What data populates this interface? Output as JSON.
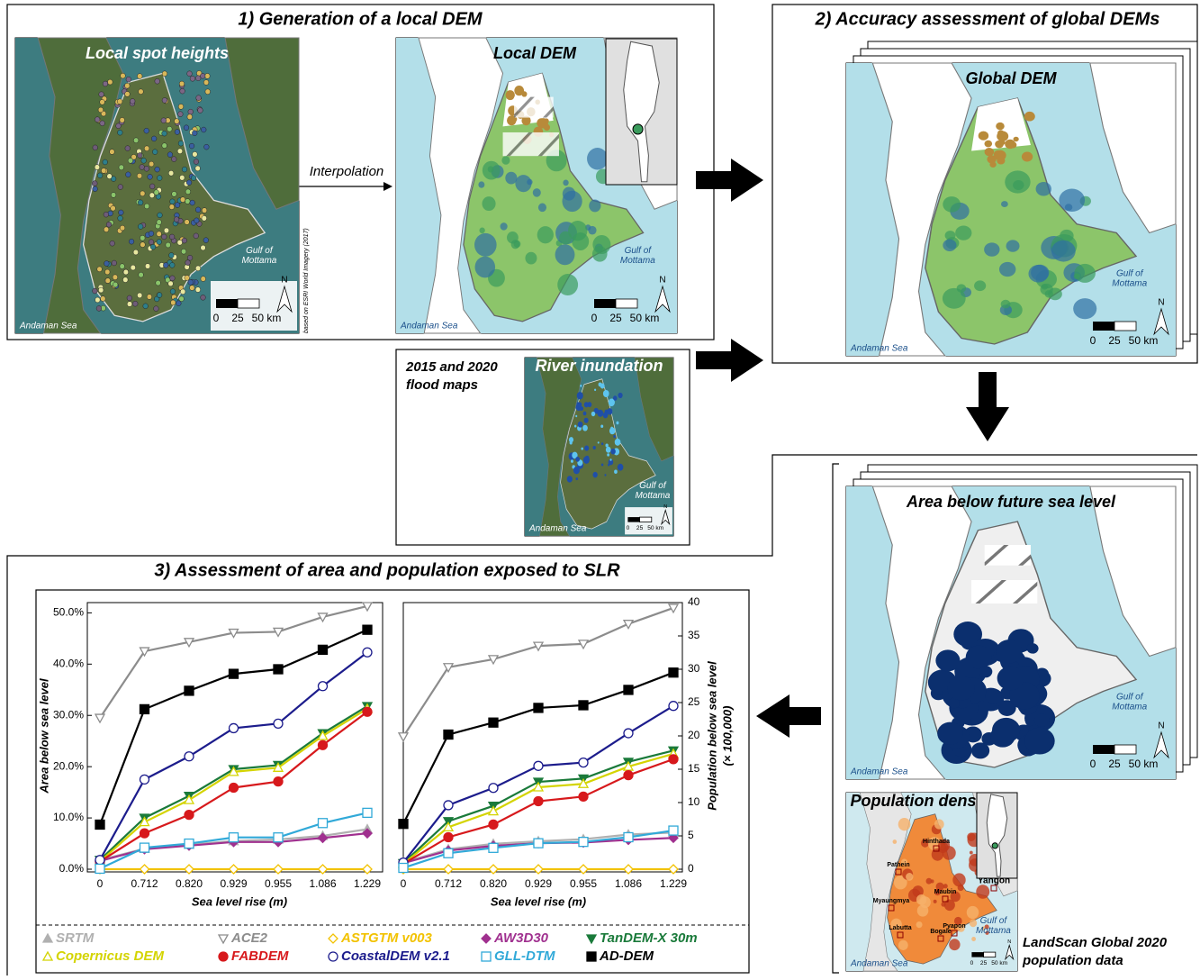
{
  "panel1": {
    "title": "1) Generation of a local DEM",
    "spot_map_label": "Local spot heights",
    "dem_map_label": "Local DEM",
    "arrow_label": "Interpolation",
    "credit": "based on ESRI World Imagery (2017)"
  },
  "map_labels": {
    "gulf": [
      "Gulf of",
      "Mottama"
    ],
    "sea": "Andaman Sea",
    "north": "N",
    "scale": [
      "0",
      "25",
      "50 km"
    ]
  },
  "panel2": {
    "title": "2) Accuracy assessment of global DEMs",
    "map_label": "Global DEM"
  },
  "flood": {
    "title": [
      "2015 and 2020",
      "flood maps"
    ],
    "map_label": "River inundation"
  },
  "panel3": {
    "title": "3) Assessment of area and population exposed to SLR",
    "map_label": "Area below future sea level",
    "pop_map_label": "Population density",
    "pop_caption": [
      "LandScan Global 2020",
      "population data"
    ],
    "cities": [
      "Hinthada",
      "Pathein",
      "Yangon",
      "Myaungmya",
      "Maubin",
      "Labutta",
      "Bogale",
      "Pyapon"
    ]
  },
  "chart_data": [
    {
      "type": "line",
      "xlabel": "Sea level rise (m)",
      "ylabel": "Area below sea level",
      "categories": [
        "0",
        "0.712",
        "0.820",
        "0.929",
        "0.955",
        "1.086",
        "1.229"
      ],
      "ylim": [
        0,
        52
      ],
      "yticks": [
        {
          "value": 0,
          "label": "0.0%"
        },
        {
          "value": 10,
          "label": "10.0%"
        },
        {
          "value": 20,
          "label": "20.0%"
        },
        {
          "value": 30,
          "label": "30.0%"
        },
        {
          "value": 40,
          "label": "40.0%"
        },
        {
          "value": 50,
          "label": "50.0%"
        }
      ],
      "axis_side": "left",
      "series": [
        {
          "name": "SRTM",
          "color": "#b0b0b0",
          "marker": "triangle-up",
          "filled": true,
          "values": [
            1.8,
            4.0,
            4.8,
            5.5,
            5.8,
            6.5,
            7.8
          ]
        },
        {
          "name": "ACE2",
          "color": "#8c8c8c",
          "marker": "triangle-down",
          "filled": false,
          "values": [
            29.5,
            42.5,
            44.3,
            46.1,
            46.3,
            49.2,
            51.3
          ]
        },
        {
          "name": "ASTGTM v003",
          "color": "#f2c200",
          "marker": "diamond",
          "filled": false,
          "values": [
            0,
            0,
            0,
            0,
            0,
            0,
            0
          ]
        },
        {
          "name": "AW3D30",
          "color": "#a0308f",
          "marker": "diamond",
          "filled": true,
          "values": [
            1.6,
            3.9,
            4.6,
            5.3,
            5.3,
            6.1,
            7.0
          ]
        },
        {
          "name": "TanDEM-X 30m",
          "color": "#1a7a3a",
          "marker": "triangle-down",
          "filled": true,
          "values": [
            1.8,
            10.0,
            14.3,
            19.5,
            20.3,
            26.5,
            31.8
          ]
        },
        {
          "name": "Copernicus DEM",
          "color": "#d4d400",
          "marker": "triangle-up",
          "filled": false,
          "values": [
            1.5,
            9.2,
            13.5,
            19.0,
            19.8,
            26.0,
            31.3
          ]
        },
        {
          "name": "FABDEM",
          "color": "#d7191c",
          "marker": "circle",
          "filled": true,
          "values": [
            1.5,
            7.0,
            10.6,
            15.9,
            17.1,
            24.2,
            30.7
          ]
        },
        {
          "name": "CoastalDEM v2.1",
          "color": "#1c1c8c",
          "marker": "circle",
          "filled": false,
          "values": [
            1.8,
            17.5,
            22.0,
            27.5,
            28.4,
            35.7,
            42.3
          ]
        },
        {
          "name": "GLL-DTM",
          "color": "#31a9d8",
          "marker": "square",
          "filled": false,
          "values": [
            0.1,
            4.2,
            5.0,
            6.2,
            6.2,
            9.0,
            11.0
          ]
        },
        {
          "name": "AD-DEM",
          "color": "#000000",
          "marker": "square",
          "filled": true,
          "values": [
            8.7,
            31.2,
            34.8,
            38.1,
            39.0,
            42.8,
            46.7
          ]
        }
      ]
    },
    {
      "type": "line",
      "xlabel": "Sea level rise (m)",
      "ylabel": [
        "Population below sea level",
        "(× 100,000)"
      ],
      "categories": [
        "0",
        "0.712",
        "0.820",
        "0.929",
        "0.955",
        "1.086",
        "1.229"
      ],
      "ylim": [
        0,
        40
      ],
      "yticks": [
        0,
        5,
        10,
        15,
        20,
        25,
        30,
        35,
        40
      ],
      "axis_side": "right",
      "series": [
        {
          "color": "#b0b0b0",
          "marker": "triangle-up",
          "filled": true,
          "values": [
            1.0,
            3.0,
            3.8,
            4.2,
            4.5,
            5.2,
            5.5
          ]
        },
        {
          "color": "#8c8c8c",
          "marker": "triangle-down",
          "filled": false,
          "values": [
            19.9,
            30.3,
            31.5,
            33.5,
            33.8,
            36.8,
            39.2
          ]
        },
        {
          "color": "#f2c200",
          "marker": "diamond",
          "filled": false,
          "values": [
            0,
            0,
            0,
            0,
            0,
            0,
            0
          ]
        },
        {
          "color": "#a0308f",
          "marker": "diamond",
          "filled": true,
          "values": [
            0.9,
            2.8,
            3.5,
            3.9,
            4.0,
            4.4,
            4.7
          ]
        },
        {
          "color": "#1a7a3a",
          "marker": "triangle-down",
          "filled": true,
          "values": [
            0.9,
            7.2,
            9.5,
            13.1,
            13.6,
            16.1,
            17.8
          ]
        },
        {
          "color": "#d4d400",
          "marker": "triangle-up",
          "filled": false,
          "values": [
            0.8,
            6.3,
            8.7,
            12.3,
            12.8,
            15.4,
            17.3
          ]
        },
        {
          "color": "#d7191c",
          "marker": "circle",
          "filled": true,
          "values": [
            0.8,
            4.8,
            6.7,
            10.2,
            10.9,
            14.1,
            16.5
          ]
        },
        {
          "color": "#1c1c8c",
          "marker": "circle",
          "filled": false,
          "values": [
            1.0,
            9.6,
            12.2,
            15.5,
            16.0,
            20.4,
            24.5
          ]
        },
        {
          "color": "#31a9d8",
          "marker": "square",
          "filled": false,
          "values": [
            0.2,
            2.4,
            3.2,
            3.9,
            4.1,
            4.8,
            5.8
          ]
        },
        {
          "color": "#000000",
          "marker": "square",
          "filled": true,
          "values": [
            6.8,
            20.2,
            22.0,
            24.2,
            24.6,
            26.9,
            29.5
          ]
        }
      ]
    }
  ]
}
